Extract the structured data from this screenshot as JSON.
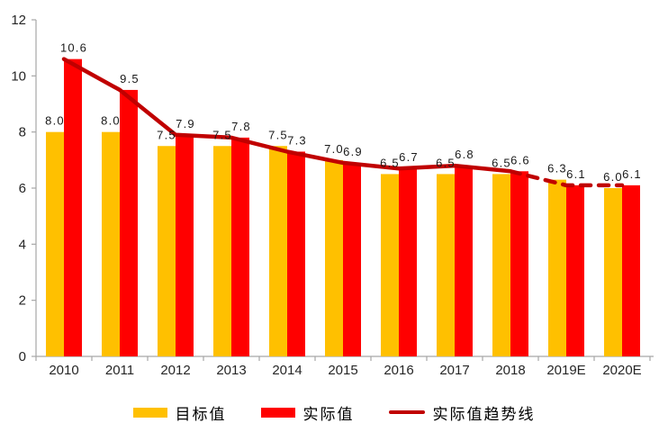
{
  "chart_data": {
    "type": "bar",
    "title": "",
    "categories": [
      "2010",
      "2011",
      "2012",
      "2013",
      "2014",
      "2015",
      "2016",
      "2017",
      "2018",
      "2019E",
      "2020E"
    ],
    "series": [
      {
        "name": "目标值",
        "type": "bar",
        "color": "#FFC000",
        "values": [
          8.0,
          8.0,
          7.5,
          7.5,
          7.5,
          7.0,
          6.5,
          6.5,
          6.5,
          6.3,
          6.0
        ]
      },
      {
        "name": "实际值",
        "type": "bar",
        "color": "#FF0000",
        "values": [
          10.6,
          9.5,
          7.9,
          7.8,
          7.3,
          6.9,
          6.7,
          6.8,
          6.6,
          6.1,
          6.1
        ]
      },
      {
        "name": "实际值趋势线",
        "type": "line",
        "color": "#C00000",
        "values": [
          10.6,
          9.5,
          7.9,
          7.8,
          7.3,
          6.9,
          6.7,
          6.8,
          6.6,
          6.1,
          6.1
        ],
        "dashed_from_index": 8
      }
    ],
    "xlabel": "",
    "ylabel": "",
    "ylim": [
      0,
      12
    ],
    "yticks": [
      0,
      2,
      4,
      6,
      8,
      10,
      12
    ],
    "grid": false,
    "legend_position": "bottom",
    "data_labels": true,
    "label_decimals": 1,
    "axis_color": "#A6A6A6",
    "label_color": "#262626"
  }
}
